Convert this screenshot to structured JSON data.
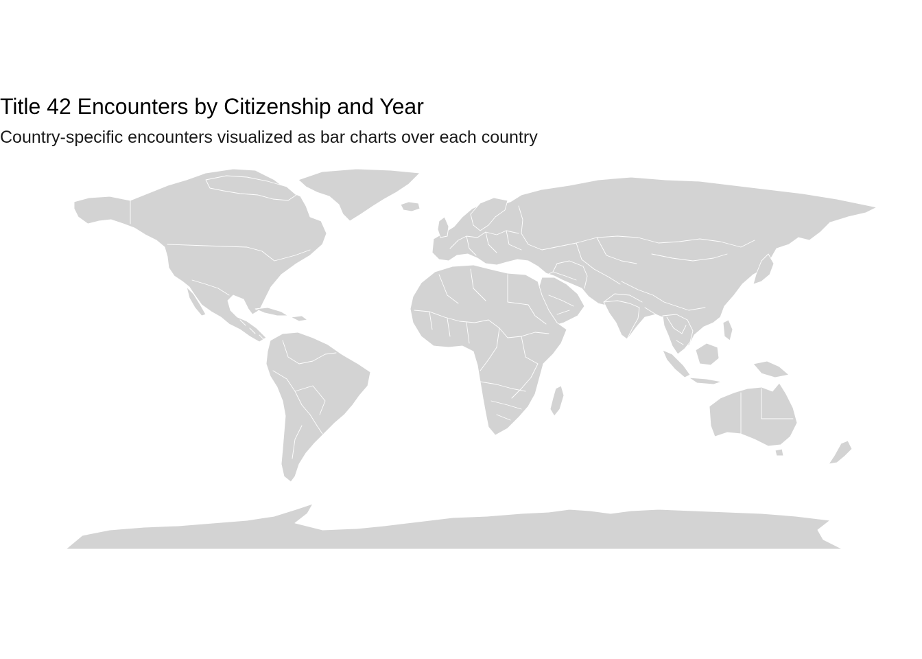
{
  "title": "Title 42 Encounters by Citizenship and Year",
  "subtitle": "Country-specific encounters visualized as bar charts over each country",
  "colors": {
    "background": "#ffffff",
    "land": "#d3d3d3",
    "borders": "#ffffff",
    "title_text": "#000000"
  },
  "map": {
    "projection": "equirectangular world map",
    "fill": "light gray",
    "country_borders": "white"
  },
  "chart_data": {
    "type": "map",
    "title": "Title 42 Encounters by Citizenship and Year",
    "subtitle": "Country-specific encounters visualized as bar charts over each country",
    "bar_charts_visible": false,
    "legend": "none",
    "grid": false,
    "axes": "none"
  }
}
